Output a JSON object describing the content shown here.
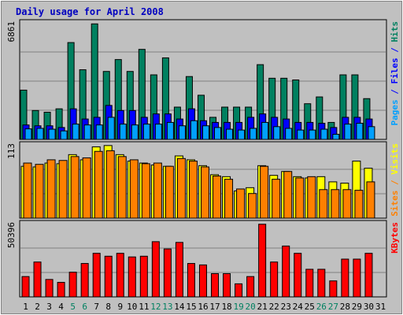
{
  "chart_data": {
    "type": "bar",
    "title": "Daily usage for April 2008",
    "categories": [
      "1",
      "2",
      "3",
      "4",
      "5",
      "6",
      "7",
      "8",
      "9",
      "10",
      "11",
      "12",
      "13",
      "14",
      "15",
      "16",
      "17",
      "18",
      "19",
      "20",
      "21",
      "22",
      "23",
      "24",
      "25",
      "26",
      "27",
      "28",
      "29",
      "30",
      "31"
    ],
    "weekend_days": [
      "5",
      "6",
      "12",
      "13",
      "19",
      "20",
      "26",
      "27"
    ],
    "panels": [
      {
        "id": "hits",
        "ymax_label": "6861",
        "ymax": 6861,
        "right_label_parts": [
          {
            "text": "Pages",
            "color": "#00a0ff"
          },
          {
            "text": " / ",
            "color": "#0000ff"
          },
          {
            "text": "Files",
            "color": "#0000ff"
          },
          {
            "text": " / ",
            "color": "#0000ff"
          },
          {
            "text": "Hits",
            "color": "#008060"
          }
        ],
        "series": [
          {
            "name": "Hits",
            "color": "#008060",
            "values": [
              2900,
              1700,
              1600,
              1800,
              5700,
              4100,
              6800,
              4000,
              4700,
              4000,
              5300,
              3800,
              4800,
              1900,
              3700,
              2600,
              1300,
              1900,
              1900,
              1900,
              4400,
              3600,
              3600,
              3500,
              2100,
              2500,
              1000,
              3800,
              3800,
              2400,
              0
            ]
          },
          {
            "name": "Files",
            "color": "#0000ff",
            "values": [
              850,
              800,
              800,
              700,
              1800,
              1200,
              1300,
              2000,
              1700,
              1700,
              1300,
              1500,
              1500,
              1200,
              1800,
              1100,
              1000,
              1000,
              1000,
              1300,
              1500,
              1300,
              1200,
              1000,
              1000,
              950,
              700,
              1300,
              1300,
              1200,
              0
            ]
          },
          {
            "name": "Pages",
            "color": "#00a0ff",
            "values": [
              620,
              650,
              600,
              500,
              900,
              850,
              850,
              1300,
              900,
              850,
              900,
              900,
              1000,
              800,
              1100,
              800,
              700,
              600,
              550,
              650,
              1000,
              750,
              650,
              550,
              550,
              600,
              300,
              900,
              950,
              750,
              0
            ]
          }
        ]
      },
      {
        "id": "sites",
        "ymax_label": "113",
        "ymax": 113,
        "right_label_parts": [
          {
            "text": "Sites",
            "color": "#ff8000"
          },
          {
            "text": " / ",
            "color": "#ff8000"
          },
          {
            "text": "Visits",
            "color": "#ffff00"
          }
        ],
        "series": [
          {
            "name": "Visits",
            "color": "#ffff00",
            "values": [
              80,
              79,
              85,
              84,
              98,
              90,
              110,
              112,
              98,
              88,
              85,
              82,
              80,
              96,
              90,
              81,
              67,
              64,
              42,
              47,
              81,
              66,
              72,
              64,
              62,
              64,
              56,
              54,
              88,
              77,
              0
            ]
          },
          {
            "name": "Sites",
            "color": "#ff8000",
            "values": [
              85,
              83,
              90,
              89,
              95,
              93,
              103,
              104,
              95,
              90,
              84,
              85,
              80,
              92,
              88,
              79,
              65,
              60,
              45,
              38,
              80,
              60,
              72,
              62,
              64,
              44,
              44,
              44,
              43,
              56,
              0
            ]
          }
        ]
      },
      {
        "id": "kbytes",
        "ymax_label": "50396",
        "ymax": 50396,
        "right_label_parts": [
          {
            "text": "KBytes",
            "color": "#ff0000"
          }
        ],
        "series": [
          {
            "name": "KBytes",
            "color": "#ff0000",
            "values": [
              14000,
              24000,
              12000,
              10000,
              17000,
              23000,
              30000,
              28000,
              30000,
              27500,
              28000,
              38000,
              33000,
              37500,
              23000,
              22000,
              16000,
              16000,
              9000,
              14000,
              50000,
              24000,
              35000,
              30000,
              19000,
              19000,
              11000,
              26000,
              26000,
              30000,
              0
            ]
          }
        ]
      }
    ]
  }
}
